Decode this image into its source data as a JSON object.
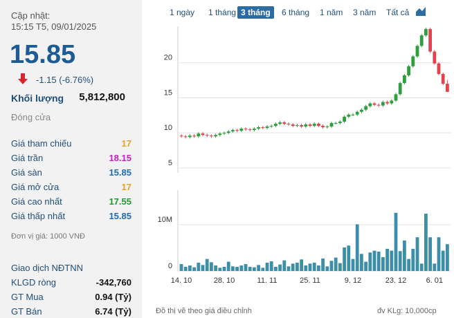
{
  "quote": {
    "updated_label": "Cập nhật:",
    "updated_time": "15:15 T5, 09/01/2025",
    "price": "15.85",
    "change": "-1.15 (-6.76%)",
    "volume_label": "Khối lượng",
    "volume": "5,812,800",
    "status": "Đóng cửa",
    "rows": [
      {
        "label": "Giá tham chiếu",
        "value": "17",
        "color": "#e8a020"
      },
      {
        "label": "Giá trần",
        "value": "18.15",
        "color": "#c81ec8"
      },
      {
        "label": "Giá sàn",
        "value": "15.85",
        "color": "#1e6ab4"
      },
      {
        "label": "Giá mở cửa",
        "value": "17",
        "color": "#e8a020"
      },
      {
        "label": "Giá cao nhất",
        "value": "17.55",
        "color": "#1f9a2a"
      },
      {
        "label": "Giá thấp nhất",
        "value": "15.85",
        "color": "#1e6ab4"
      }
    ],
    "unit": "Đơn vị giá: 1000 VNĐ",
    "foreign_title": "Giao dịch NĐTNN",
    "foreign_rows": [
      {
        "label": "KLGD ròng",
        "value": "-342,760"
      },
      {
        "label": "GT Mua",
        "value": "0.94 (Tỷ)"
      },
      {
        "label": "GT Bán",
        "value": "6.74 (Tỷ)"
      }
    ]
  },
  "tabs": {
    "items": [
      "1 ngày",
      "1 tháng",
      "3 tháng",
      "6 tháng",
      "1 năm",
      "3 năm",
      "Tất cả"
    ],
    "active": 2
  },
  "chart_data": [
    {
      "type": "candlestick",
      "up_color": "#2e9e3e",
      "down_color": "#e0454f",
      "ylim": [
        4.3,
        25.2
      ],
      "yticks": [
        5,
        10,
        15,
        20
      ],
      "grid": true,
      "open": [
        9.6,
        9.5,
        9.4,
        9.6,
        9.5,
        9.9,
        9.7,
        9.6,
        9.5,
        9.7,
        9.9,
        10.0,
        10.2,
        10.4,
        10.3,
        10.6,
        10.5,
        10.4,
        10.6,
        10.8,
        10.7,
        10.9,
        11.0,
        11.3,
        11.5,
        11.3,
        11.2,
        11.0,
        11.1,
        10.9,
        11.2,
        11.0,
        11.3,
        11.0,
        10.8,
        10.9,
        11.4,
        11.4,
        11.6,
        12.3,
        12.6,
        12.6,
        13.0,
        13.3,
        13.8,
        14.2,
        14.0,
        13.9,
        14.4,
        14.2,
        14.6,
        15.5,
        17.1,
        18.2,
        19.5,
        20.9,
        22.4,
        23.9,
        24.8,
        21.6,
        19.9,
        18.4,
        17.0
      ],
      "high": [
        9.8,
        9.7,
        9.8,
        9.8,
        10.1,
        10.1,
        9.9,
        9.8,
        9.9,
        10.1,
        10.2,
        10.4,
        10.6,
        10.6,
        10.8,
        10.8,
        10.7,
        10.8,
        11.0,
        11.0,
        11.1,
        11.2,
        11.5,
        11.7,
        11.7,
        11.5,
        11.4,
        11.3,
        11.3,
        11.4,
        11.4,
        11.5,
        11.5,
        11.2,
        11.1,
        11.6,
        11.6,
        11.8,
        12.5,
        12.8,
        12.8,
        13.2,
        13.5,
        14.0,
        14.4,
        14.4,
        14.2,
        14.6,
        14.6,
        14.8,
        15.7,
        17.3,
        18.4,
        19.7,
        21.1,
        22.6,
        24.1,
        25.0,
        25.0,
        21.8,
        20.1,
        18.6,
        17.55
      ],
      "low": [
        9.3,
        9.2,
        9.2,
        9.3,
        9.3,
        9.5,
        9.4,
        9.3,
        9.3,
        9.5,
        9.7,
        9.8,
        10.0,
        10.1,
        10.1,
        10.3,
        10.2,
        10.2,
        10.4,
        10.5,
        10.5,
        10.7,
        10.8,
        11.1,
        11.1,
        11.0,
        10.8,
        10.8,
        10.7,
        10.7,
        10.8,
        10.8,
        10.8,
        10.6,
        10.6,
        10.7,
        11.2,
        11.2,
        11.4,
        12.1,
        12.4,
        12.4,
        12.8,
        13.1,
        13.6,
        13.8,
        13.7,
        13.7,
        14.0,
        14.0,
        14.4,
        15.3,
        16.9,
        18.0,
        19.3,
        20.7,
        22.2,
        23.7,
        21.4,
        19.7,
        18.2,
        16.8,
        15.85
      ],
      "close": [
        9.5,
        9.4,
        9.6,
        9.5,
        9.9,
        9.7,
        9.6,
        9.5,
        9.7,
        9.9,
        10.0,
        10.2,
        10.4,
        10.3,
        10.6,
        10.5,
        10.4,
        10.6,
        10.8,
        10.7,
        10.9,
        11.0,
        11.3,
        11.5,
        11.3,
        11.2,
        11.0,
        11.1,
        10.9,
        11.2,
        11.0,
        11.3,
        11.0,
        10.8,
        10.9,
        11.4,
        11.4,
        11.6,
        12.3,
        12.6,
        12.6,
        13.0,
        13.3,
        13.8,
        14.2,
        14.0,
        13.9,
        14.4,
        14.2,
        14.6,
        15.5,
        17.1,
        18.2,
        19.5,
        20.9,
        22.4,
        23.9,
        24.8,
        21.6,
        19.9,
        18.4,
        17.0,
        15.85
      ]
    },
    {
      "type": "bar",
      "color": "#3d8fa8",
      "ylim": [
        0,
        17.5
      ],
      "yticks": [
        0,
        {
          "value": 10,
          "label": "10M"
        }
      ],
      "categories": [
        "14. 10",
        null,
        null,
        null,
        null,
        null,
        null,
        null,
        null,
        null,
        "28. 10",
        null,
        null,
        null,
        null,
        null,
        null,
        null,
        null,
        null,
        "11. 11",
        null,
        null,
        null,
        null,
        null,
        null,
        null,
        null,
        null,
        "25. 11",
        null,
        null,
        null,
        null,
        null,
        null,
        null,
        null,
        null,
        "9. 12",
        null,
        null,
        null,
        null,
        null,
        null,
        null,
        null,
        null,
        "23. 12",
        null,
        null,
        null,
        null,
        null,
        null,
        null,
        null,
        "6. 01",
        null,
        null,
        null
      ],
      "values": [
        1.5,
        0.9,
        1.2,
        0.8,
        1.8,
        1.3,
        2.6,
        1.9,
        1.2,
        0.7,
        0.9,
        2.0,
        1.0,
        0.9,
        1.2,
        1.5,
        0.9,
        0.8,
        1.3,
        0.7,
        1.8,
        2.1,
        0.9,
        1.4,
        2.3,
        1.0,
        1.6,
        1.8,
        2.5,
        1.2,
        1.6,
        1.8,
        1.2,
        2.7,
        1.0,
        2.2,
        2.9,
        1.7,
        5.1,
        5.5,
        2.6,
        10.1,
        3.7,
        2.0,
        4.0,
        4.4,
        4.2,
        3.0,
        4.8,
        4.4,
        12.6,
        4.3,
        6.6,
        2.6,
        4.8,
        7.3,
        1.6,
        12.4,
        7.3,
        1.6,
        7.3,
        4.4,
        5.8
      ]
    }
  ],
  "footer": {
    "note": "Đồ thị vẽ theo giá điều chỉnh",
    "unit": "đv KLg: 10,000cp"
  }
}
